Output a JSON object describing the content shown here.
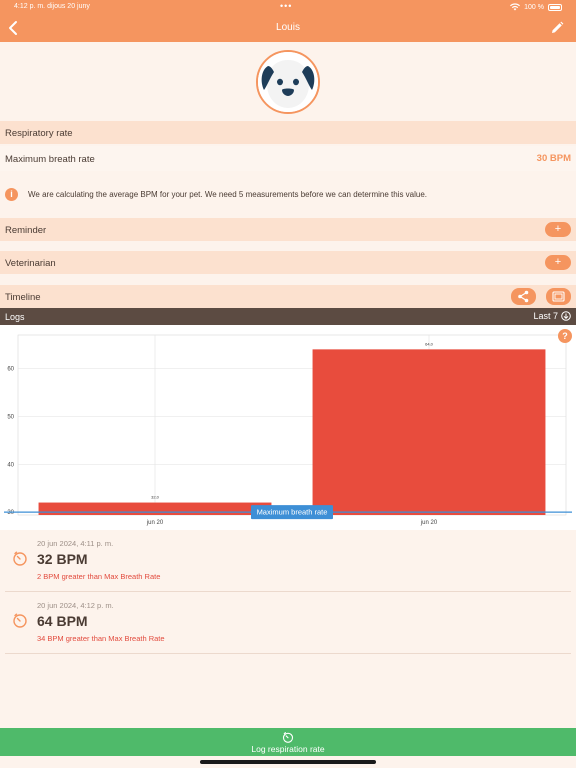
{
  "status_bar": {
    "time": "4:12 p. m.   dijous 20 juny",
    "battery": "100 %"
  },
  "nav": {
    "title": "Louis"
  },
  "respiratory": {
    "section_title": "Respiratory rate",
    "max_label": "Maximum breath rate",
    "max_value": "30 BPM"
  },
  "info": {
    "text": "We are calculating the average BPM for your pet. We need 5 measurements before we can determine this value."
  },
  "reminder": {
    "label": "Reminder"
  },
  "veterinarian": {
    "label": "Veterinarian"
  },
  "timeline": {
    "label": "Timeline"
  },
  "logs": {
    "label": "Logs",
    "filter": "Last 7"
  },
  "chart_data": {
    "type": "bar",
    "categories": [
      "jun 20",
      "jun 20"
    ],
    "values": [
      32,
      64
    ],
    "value_labels": [
      "32,0",
      "64,0"
    ],
    "ylim": [
      29.4,
      67
    ],
    "yticks": [
      30,
      40,
      50,
      60
    ],
    "reference_line": {
      "label": "Maximum breath rate",
      "value": 30
    },
    "bar_color": "#e84c3d",
    "reference_color": "#3d8fd6",
    "grid": true
  },
  "entries": [
    {
      "date": "20 jun 2024, 4:11 p. m.",
      "bpm": "32 BPM",
      "diff": "2 BPM greater than Max Breath Rate"
    },
    {
      "date": "20 jun 2024, 4:12 p. m.",
      "bpm": "64 BPM",
      "diff": "34 BPM greater than Max Breath Rate"
    }
  ],
  "log_button": {
    "label": "Log respiration rate"
  },
  "colors": {
    "accent": "#f5955f",
    "green": "#4fba6a",
    "header_dark": "#5c4b42"
  }
}
